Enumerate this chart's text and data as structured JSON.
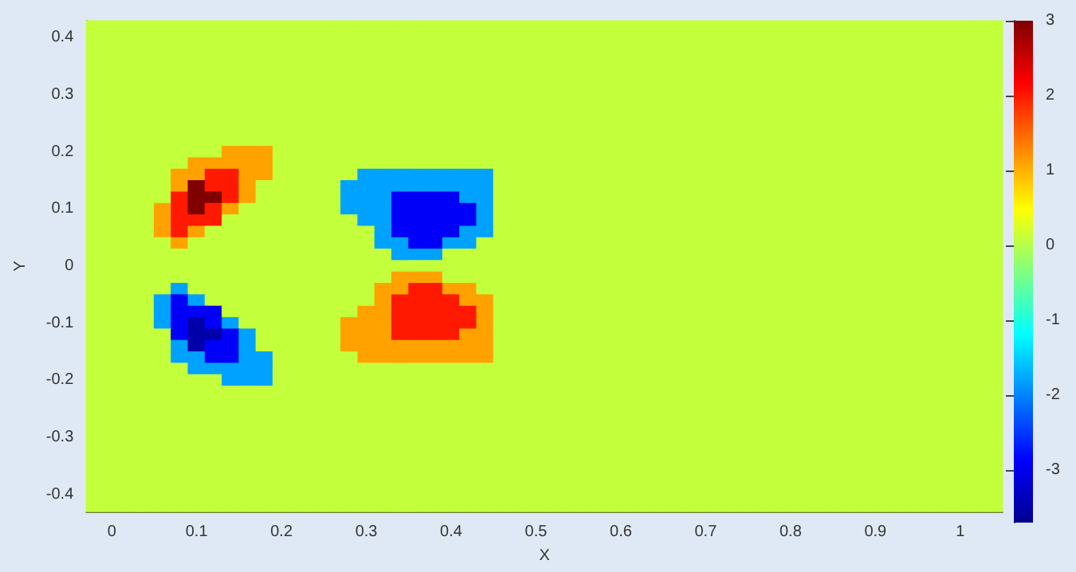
{
  "chart_data": {
    "type": "heatmap",
    "xlabel": "X",
    "ylabel": "Y",
    "clim": [
      -3.7,
      3
    ],
    "cticks": [
      -3,
      -2,
      -1,
      0,
      1,
      2,
      3
    ],
    "categories": [
      null,
      "0",
      null,
      null,
      null,
      null,
      "0.1",
      null,
      null,
      null,
      null,
      "0.2",
      null,
      null,
      null,
      null,
      "0.3",
      null,
      null,
      null,
      null,
      "0.4",
      null,
      null,
      null,
      null,
      "0.5",
      null,
      null,
      null,
      null,
      "0.6",
      null,
      null,
      null,
      null,
      "0.7",
      null,
      null,
      null,
      null,
      "0.8",
      null,
      null,
      null,
      null,
      "0.9",
      null,
      null,
      null,
      null,
      "1",
      null,
      null
    ],
    "y_categories": [
      null,
      "0.4",
      null,
      null,
      null,
      null,
      "0.3",
      null,
      null,
      null,
      null,
      "0.2",
      null,
      null,
      null,
      null,
      "0.1",
      null,
      null,
      null,
      null,
      "0",
      null,
      null,
      null,
      null,
      "-0.1",
      null,
      null,
      null,
      null,
      "-0.2",
      null,
      null,
      null,
      null,
      "-0.3",
      null,
      null,
      null,
      null,
      "-0.4",
      null
    ],
    "cells": [
      [
        0.1,
        0.1,
        0.1,
        0.1,
        0.1,
        0.1,
        0.1,
        0.1,
        0.1,
        0.1,
        0.1,
        0.1,
        0.1,
        0.1,
        0.1,
        0.1,
        0.1,
        0.1,
        0.1,
        0.1,
        0.1,
        0.1,
        0.1,
        0.1,
        0.1,
        0.1,
        0.1,
        0.1,
        0.1,
        0.1,
        0.1,
        0.1,
        0.1,
        0.1,
        0.1,
        0.1,
        0.1,
        0.1,
        0.1,
        0.1,
        0.1,
        0.1,
        0.1,
        0.1,
        0.1,
        0.1,
        0.1,
        0.1,
        0.1,
        0.1,
        0.1,
        0.1,
        0.1,
        0.1
      ],
      [
        0.1,
        0.1,
        0.1,
        0.1,
        0.1,
        0.1,
        0.1,
        0.1,
        0.1,
        0.1,
        0.1,
        0.1,
        0.1,
        0.1,
        0.1,
        0.1,
        0.1,
        0.1,
        0.1,
        0.1,
        0.1,
        0.1,
        0.1,
        0.1,
        0.1,
        0.1,
        0.1,
        0.1,
        0.1,
        0.1,
        0.1,
        0.1,
        0.1,
        0.1,
        0.1,
        0.1,
        0.1,
        0.1,
        0.1,
        0.1,
        0.1,
        0.1,
        0.1,
        0.1,
        0.1,
        0.1,
        0.1,
        0.1,
        0.1,
        0.1,
        0.1,
        0.1,
        0.1,
        0.1
      ],
      [
        0.1,
        0.1,
        0.1,
        0.1,
        0.1,
        0.1,
        0.1,
        0.1,
        0.1,
        0.1,
        0.1,
        0.1,
        0.1,
        0.1,
        0.1,
        0.1,
        0.1,
        0.1,
        0.1,
        0.1,
        0.1,
        0.1,
        0.1,
        0.1,
        0.1,
        0.1,
        0.1,
        0.1,
        0.1,
        0.1,
        0.1,
        0.1,
        0.1,
        0.1,
        0.1,
        0.1,
        0.1,
        0.1,
        0.1,
        0.1,
        0.1,
        0.1,
        0.1,
        0.1,
        0.1,
        0.1,
        0.1,
        0.1,
        0.1,
        0.1,
        0.1,
        0.1,
        0.1,
        0.1
      ],
      [
        0.1,
        0.1,
        0.1,
        0.1,
        0.1,
        0.1,
        0.1,
        0.1,
        0.1,
        0.1,
        0.1,
        0.1,
        0.1,
        0.1,
        0.1,
        0.1,
        0.1,
        0.1,
        0.1,
        0.1,
        0.1,
        0.1,
        0.1,
        0.1,
        0.1,
        0.1,
        0.1,
        0.1,
        0.1,
        0.1,
        0.1,
        0.1,
        0.1,
        0.1,
        0.1,
        0.1,
        0.1,
        0.1,
        0.1,
        0.1,
        0.1,
        0.1,
        0.1,
        0.1,
        0.1,
        0.1,
        0.1,
        0.1,
        0.1,
        0.1,
        0.1,
        0.1,
        0.1,
        0.1
      ],
      [
        0.1,
        0.1,
        0.1,
        0.1,
        0.1,
        0.1,
        0.1,
        0.1,
        0.1,
        0.1,
        0.1,
        0.1,
        0.1,
        0.1,
        0.1,
        0.1,
        0.1,
        0.1,
        0.1,
        0.1,
        0.1,
        0.1,
        0.1,
        0.1,
        0.1,
        0.1,
        0.1,
        0.1,
        0.1,
        0.1,
        0.1,
        0.1,
        0.1,
        0.1,
        0.1,
        0.1,
        0.1,
        0.1,
        0.1,
        0.1,
        0.1,
        0.1,
        0.1,
        0.1,
        0.1,
        0.1,
        0.1,
        0.1,
        0.1,
        0.1,
        0.1,
        0.1,
        0.1,
        0.1
      ],
      [
        0.1,
        0.1,
        0.1,
        0.1,
        0.1,
        0.1,
        0.1,
        0.1,
        0.1,
        0.1,
        0.1,
        0.1,
        0.1,
        0.1,
        0.1,
        0.1,
        0.1,
        0.1,
        0.1,
        0.1,
        0.1,
        0.1,
        0.1,
        0.1,
        0.1,
        0.1,
        0.1,
        0.1,
        0.1,
        0.1,
        0.1,
        0.1,
        0.1,
        0.1,
        0.1,
        0.1,
        0.1,
        0.1,
        0.1,
        0.1,
        0.1,
        0.1,
        0.1,
        0.1,
        0.1,
        0.1,
        0.1,
        0.1,
        0.1,
        0.1,
        0.1,
        0.1,
        0.1,
        0.1
      ],
      [
        0.1,
        0.1,
        0.1,
        0.1,
        0.1,
        0.1,
        0.1,
        0.1,
        0.1,
        0.1,
        0.1,
        0.1,
        0.1,
        0.1,
        0.1,
        0.1,
        0.1,
        0.1,
        0.1,
        0.1,
        0.1,
        0.1,
        0.1,
        0.1,
        0.1,
        0.1,
        0.1,
        0.1,
        0.1,
        0.1,
        0.1,
        0.1,
        0.1,
        0.1,
        0.1,
        0.1,
        0.1,
        0.1,
        0.1,
        0.1,
        0.1,
        0.1,
        0.1,
        0.1,
        0.1,
        0.1,
        0.1,
        0.1,
        0.1,
        0.1,
        0.1,
        0.1,
        0.1,
        0.1
      ],
      [
        0.1,
        0.1,
        0.1,
        0.1,
        0.1,
        0.1,
        0.1,
        0.1,
        0.1,
        0.1,
        0.1,
        0.1,
        0.1,
        0.1,
        0.1,
        0.1,
        0.1,
        0.1,
        0.1,
        0.1,
        0.1,
        0.1,
        0.1,
        0.1,
        0.1,
        0.1,
        0.1,
        0.1,
        0.1,
        0.1,
        0.1,
        0.1,
        0.1,
        0.1,
        0.1,
        0.1,
        0.1,
        0.1,
        0.1,
        0.1,
        0.1,
        0.1,
        0.1,
        0.1,
        0.1,
        0.1,
        0.1,
        0.1,
        0.1,
        0.1,
        0.1,
        0.1,
        0.1,
        0.1
      ],
      [
        0.1,
        0.1,
        0.1,
        0.1,
        0.1,
        0.1,
        0.1,
        0.1,
        0.1,
        0.1,
        0.1,
        0.1,
        0.1,
        0.1,
        0.1,
        0.1,
        0.1,
        0.1,
        0.1,
        0.1,
        0.1,
        0.1,
        0.1,
        0.1,
        0.1,
        0.1,
        0.1,
        0.1,
        0.1,
        0.1,
        0.1,
        0.1,
        0.1,
        0.1,
        0.1,
        0.1,
        0.1,
        0.1,
        0.1,
        0.1,
        0.1,
        0.1,
        0.1,
        0.1,
        0.1,
        0.1,
        0.1,
        0.1,
        0.1,
        0.1,
        0.1,
        0.1,
        0.1,
        0.1
      ],
      [
        0.1,
        0.1,
        0.1,
        0.1,
        0.1,
        0.1,
        0.1,
        0.1,
        0.1,
        0.1,
        0.1,
        0.1,
        0.1,
        0.1,
        0.1,
        0.1,
        0.1,
        0.1,
        0.1,
        0.1,
        0.1,
        0.1,
        0.1,
        0.1,
        0.1,
        0.1,
        0.1,
        0.1,
        0.1,
        0.1,
        0.1,
        0.1,
        0.1,
        0.1,
        0.1,
        0.1,
        0.1,
        0.1,
        0.1,
        0.1,
        0.1,
        0.1,
        0.1,
        0.1,
        0.1,
        0.1,
        0.1,
        0.1,
        0.1,
        0.1,
        0.1,
        0.1,
        0.1,
        0.1
      ],
      [
        0.1,
        0.1,
        0.1,
        0.1,
        0.1,
        0.1,
        0.1,
        0.1,
        0.1,
        0.1,
        0.1,
        0.1,
        0.1,
        0.1,
        0.1,
        0.1,
        0.1,
        0.1,
        0.1,
        0.1,
        0.1,
        0.1,
        0.1,
        0.1,
        0.1,
        0.1,
        0.1,
        0.1,
        0.1,
        0.1,
        0.1,
        0.1,
        0.1,
        0.1,
        0.1,
        0.1,
        0.1,
        0.1,
        0.1,
        0.1,
        0.1,
        0.1,
        0.1,
        0.1,
        0.1,
        0.1,
        0.1,
        0.1,
        0.1,
        0.1,
        0.1,
        0.1,
        0.1,
        0.1
      ],
      [
        0.1,
        0.1,
        0.1,
        0.1,
        0.1,
        0.1,
        0.1,
        0.1,
        1.1,
        1.1,
        1.1,
        0.1,
        0.1,
        0.1,
        0.1,
        0.1,
        0.1,
        0.1,
        0.1,
        0.1,
        0.1,
        0.1,
        0.1,
        0.1,
        0.1,
        0.1,
        0.1,
        0.1,
        0.1,
        0.1,
        0.1,
        0.1,
        0.1,
        0.1,
        0.1,
        0.1,
        0.1,
        0.1,
        0.1,
        0.1,
        0.1,
        0.1,
        0.1,
        0.1,
        0.1,
        0.1,
        0.1,
        0.1,
        0.1,
        0.1,
        0.1,
        0.1,
        0.1,
        0.1
      ],
      [
        0.1,
        0.1,
        0.1,
        0.1,
        0.1,
        0.1,
        1.1,
        1.1,
        1.1,
        1.1,
        1.1,
        0.1,
        0.1,
        0.1,
        0.1,
        0.1,
        0.1,
        0.1,
        0.1,
        0.1,
        0.1,
        0.1,
        0.1,
        0.1,
        0.1,
        0.1,
        0.1,
        0.1,
        0.1,
        0.1,
        0.1,
        0.1,
        0.1,
        0.1,
        0.1,
        0.1,
        0.1,
        0.1,
        0.1,
        0.1,
        0.1,
        0.1,
        0.1,
        0.1,
        0.1,
        0.1,
        0.1,
        0.1,
        0.1,
        0.1,
        0.1,
        0.1,
        0.1,
        0.1
      ],
      [
        0.1,
        0.1,
        0.1,
        0.1,
        0.1,
        1.1,
        1.1,
        2,
        2,
        1.1,
        1.1,
        0.1,
        0.1,
        0.1,
        0.1,
        0.1,
        -1.8,
        -1.8,
        -1.8,
        -1.8,
        -1.8,
        -1.8,
        -1.8,
        -1.8,
        0.1,
        0.1,
        0.1,
        0.1,
        0.1,
        0.1,
        0.1,
        0.1,
        0.1,
        0.1,
        0.1,
        0.1,
        0.1,
        0.1,
        0.1,
        0.1,
        0.1,
        0.1,
        0.1,
        0.1,
        0.1,
        0.1,
        0.1,
        0.1,
        0.1,
        0.1,
        0.1,
        0.1,
        0.1,
        0.1
      ],
      [
        0.1,
        0.1,
        0.1,
        0.1,
        0.1,
        1.1,
        3,
        2,
        2,
        1.1,
        0.1,
        0.1,
        0.1,
        0.1,
        0.1,
        -1.8,
        -1.8,
        -1.8,
        -1.8,
        -1.8,
        -1.8,
        -1.8,
        -1.8,
        -1.8,
        0.1,
        0.1,
        0.1,
        0.1,
        0.1,
        0.1,
        0.1,
        0.1,
        0.1,
        0.1,
        0.1,
        0.1,
        0.1,
        0.1,
        0.1,
        0.1,
        0.1,
        0.1,
        0.1,
        0.1,
        0.1,
        0.1,
        0.1,
        0.1,
        0.1,
        0.1,
        0.1,
        0.1,
        0.1,
        0.1
      ],
      [
        0.1,
        0.1,
        0.1,
        0.1,
        0.1,
        2,
        3,
        3,
        2,
        1.1,
        0.1,
        0.1,
        0.1,
        0.1,
        0.1,
        -1.8,
        -1.8,
        -1.8,
        -2.9,
        -2.9,
        -2.9,
        -2.9,
        -1.8,
        -1.8,
        0.1,
        0.1,
        0.1,
        0.1,
        0.1,
        0.1,
        0.1,
        0.1,
        0.1,
        0.1,
        0.1,
        0.1,
        0.1,
        0.1,
        0.1,
        0.1,
        0.1,
        0.1,
        0.1,
        0.1,
        0.1,
        0.1,
        0.1,
        0.1,
        0.1,
        0.1,
        0.1,
        0.1,
        0.1,
        0.1
      ],
      [
        0.1,
        0.1,
        0.1,
        0.1,
        1.1,
        2,
        3,
        2,
        1.1,
        0.1,
        0.1,
        0.1,
        0.1,
        0.1,
        0.1,
        -1.8,
        -1.8,
        -1.8,
        -2.9,
        -2.9,
        -2.9,
        -2.9,
        -2.9,
        -1.8,
        0.1,
        0.1,
        0.1,
        0.1,
        0.1,
        0.1,
        0.1,
        0.1,
        0.1,
        0.1,
        0.1,
        0.1,
        0.1,
        0.1,
        0.1,
        0.1,
        0.1,
        0.1,
        0.1,
        0.1,
        0.1,
        0.1,
        0.1,
        0.1,
        0.1,
        0.1,
        0.1,
        0.1,
        0.1,
        0.1
      ],
      [
        0.1,
        0.1,
        0.1,
        0.1,
        1.1,
        2,
        2,
        2,
        0.1,
        0.1,
        0.1,
        0.1,
        0.1,
        0.1,
        0.1,
        0.1,
        -1.8,
        -1.8,
        -2.9,
        -2.9,
        -2.9,
        -2.9,
        -2.9,
        -1.8,
        0.1,
        0.1,
        0.1,
        0.1,
        0.1,
        0.1,
        0.1,
        0.1,
        0.1,
        0.1,
        0.1,
        0.1,
        0.1,
        0.1,
        0.1,
        0.1,
        0.1,
        0.1,
        0.1,
        0.1,
        0.1,
        0.1,
        0.1,
        0.1,
        0.1,
        0.1,
        0.1,
        0.1,
        0.1,
        0.1
      ],
      [
        0.1,
        0.1,
        0.1,
        0.1,
        1.1,
        2,
        1.1,
        0.1,
        0.1,
        0.1,
        0.1,
        0.1,
        0.1,
        0.1,
        0.1,
        0.1,
        0.1,
        -1.8,
        -2.9,
        -2.9,
        -2.9,
        -2.9,
        -1.8,
        -1.8,
        0.1,
        0.1,
        0.1,
        0.1,
        0.1,
        0.1,
        0.1,
        0.1,
        0.1,
        0.1,
        0.1,
        0.1,
        0.1,
        0.1,
        0.1,
        0.1,
        0.1,
        0.1,
        0.1,
        0.1,
        0.1,
        0.1,
        0.1,
        0.1,
        0.1,
        0.1,
        0.1,
        0.1,
        0.1,
        0.1
      ],
      [
        0.1,
        0.1,
        0.1,
        0.1,
        0.1,
        1.1,
        0.1,
        0.1,
        0.1,
        0.1,
        0.1,
        0.1,
        0.1,
        0.1,
        0.1,
        0.1,
        0.1,
        -1.8,
        -1.8,
        -2.9,
        -2.9,
        -1.8,
        -1.8,
        0.1,
        0.1,
        0.1,
        0.1,
        0.1,
        0.1,
        0.1,
        0.1,
        0.1,
        0.1,
        0.1,
        0.1,
        0.1,
        0.1,
        0.1,
        0.1,
        0.1,
        0.1,
        0.1,
        0.1,
        0.1,
        0.1,
        0.1,
        0.1,
        0.1,
        0.1,
        0.1,
        0.1,
        0.1,
        0.1,
        0.1
      ],
      [
        0.1,
        0.1,
        0.1,
        0.1,
        0.1,
        0.1,
        0.1,
        0.1,
        0.1,
        0.1,
        0.1,
        0.1,
        0.1,
        0.1,
        0.1,
        0.1,
        0.1,
        0.1,
        -1.8,
        -1.8,
        -1.8,
        0.1,
        0.1,
        0.1,
        0.1,
        0.1,
        0.1,
        0.1,
        0.1,
        0.1,
        0.1,
        0.1,
        0.1,
        0.1,
        0.1,
        0.1,
        0.1,
        0.1,
        0.1,
        0.1,
        0.1,
        0.1,
        0.1,
        0.1,
        0.1,
        0.1,
        0.1,
        0.1,
        0.1,
        0.1,
        0.1,
        0.1,
        0.1,
        0.1
      ],
      [
        0.1,
        0.1,
        0.1,
        0.1,
        0.1,
        0.1,
        0.1,
        0.1,
        0.1,
        0.1,
        0.1,
        0.1,
        0.1,
        0.1,
        0.1,
        0.1,
        0.1,
        0.1,
        0.1,
        0.1,
        0.1,
        0.1,
        0.1,
        0.1,
        0.1,
        0.1,
        0.1,
        0.1,
        0.1,
        0.1,
        0.1,
        0.1,
        0.1,
        0.1,
        0.1,
        0.1,
        0.1,
        0.1,
        0.1,
        0.1,
        0.1,
        0.1,
        0.1,
        0.1,
        0.1,
        0.1,
        0.1,
        0.1,
        0.1,
        0.1,
        0.1,
        0.1,
        0.1,
        0.1
      ],
      [
        0.1,
        0.1,
        0.1,
        0.1,
        0.1,
        0.1,
        0.1,
        0.1,
        0.1,
        0.1,
        0.1,
        0.1,
        0.1,
        0.1,
        0.1,
        0.1,
        0.1,
        0.1,
        1.1,
        1.1,
        1.1,
        0.1,
        0.1,
        0.1,
        0.1,
        0.1,
        0.1,
        0.1,
        0.1,
        0.1,
        0.1,
        0.1,
        0.1,
        0.1,
        0.1,
        0.1,
        0.1,
        0.1,
        0.1,
        0.1,
        0.1,
        0.1,
        0.1,
        0.1,
        0.1,
        0.1,
        0.1,
        0.1,
        0.1,
        0.1,
        0.1,
        0.1,
        0.1,
        0.1
      ],
      [
        0.1,
        0.1,
        0.1,
        0.1,
        0.1,
        -1.8,
        0.1,
        0.1,
        0.1,
        0.1,
        0.1,
        0.1,
        0.1,
        0.1,
        0.1,
        0.1,
        0.1,
        1.1,
        1.1,
        2,
        2,
        1.1,
        1.1,
        0.1,
        0.1,
        0.1,
        0.1,
        0.1,
        0.1,
        0.1,
        0.1,
        0.1,
        0.1,
        0.1,
        0.1,
        0.1,
        0.1,
        0.1,
        0.1,
        0.1,
        0.1,
        0.1,
        0.1,
        0.1,
        0.1,
        0.1,
        0.1,
        0.1,
        0.1,
        0.1,
        0.1,
        0.1,
        0.1,
        0.1
      ],
      [
        0.1,
        0.1,
        0.1,
        0.1,
        -1.8,
        -2.9,
        -1.8,
        0.1,
        0.1,
        0.1,
        0.1,
        0.1,
        0.1,
        0.1,
        0.1,
        0.1,
        0.1,
        1.1,
        2,
        2,
        2,
        2,
        1.1,
        1.1,
        0.1,
        0.1,
        0.1,
        0.1,
        0.1,
        0.1,
        0.1,
        0.1,
        0.1,
        0.1,
        0.1,
        0.1,
        0.1,
        0.1,
        0.1,
        0.1,
        0.1,
        0.1,
        0.1,
        0.1,
        0.1,
        0.1,
        0.1,
        0.1,
        0.1,
        0.1,
        0.1,
        0.1,
        0.1,
        0.1
      ],
      [
        0.1,
        0.1,
        0.1,
        0.1,
        -1.8,
        -2.9,
        -2.9,
        -2.9,
        0.1,
        0.1,
        0.1,
        0.1,
        0.1,
        0.1,
        0.1,
        0.1,
        1.1,
        1.1,
        2,
        2,
        2,
        2,
        2,
        1.1,
        0.1,
        0.1,
        0.1,
        0.1,
        0.1,
        0.1,
        0.1,
        0.1,
        0.1,
        0.1,
        0.1,
        0.1,
        0.1,
        0.1,
        0.1,
        0.1,
        0.1,
        0.1,
        0.1,
        0.1,
        0.1,
        0.1,
        0.1,
        0.1,
        0.1,
        0.1,
        0.1,
        0.1,
        0.1,
        0.1
      ],
      [
        0.1,
        0.1,
        0.1,
        0.1,
        -1.8,
        -2.9,
        -3.5,
        -2.9,
        -1.8,
        0.1,
        0.1,
        0.1,
        0.1,
        0.1,
        0.1,
        1.1,
        1.1,
        1.1,
        2,
        2,
        2,
        2,
        2,
        1.1,
        0.1,
        0.1,
        0.1,
        0.1,
        0.1,
        0.1,
        0.1,
        0.1,
        0.1,
        0.1,
        0.1,
        0.1,
        0.1,
        0.1,
        0.1,
        0.1,
        0.1,
        0.1,
        0.1,
        0.1,
        0.1,
        0.1,
        0.1,
        0.1,
        0.1,
        0.1,
        0.1,
        0.1,
        0.1,
        0.1
      ],
      [
        0.1,
        0.1,
        0.1,
        0.1,
        0.1,
        -2.9,
        -3.5,
        -3.5,
        -2.9,
        -1.8,
        0.1,
        0.1,
        0.1,
        0.1,
        0.1,
        1.1,
        1.1,
        1.1,
        2,
        2,
        2,
        2,
        1.1,
        1.1,
        0.1,
        0.1,
        0.1,
        0.1,
        0.1,
        0.1,
        0.1,
        0.1,
        0.1,
        0.1,
        0.1,
        0.1,
        0.1,
        0.1,
        0.1,
        0.1,
        0.1,
        0.1,
        0.1,
        0.1,
        0.1,
        0.1,
        0.1,
        0.1,
        0.1,
        0.1,
        0.1,
        0.1,
        0.1,
        0.1
      ],
      [
        0.1,
        0.1,
        0.1,
        0.1,
        0.1,
        -1.8,
        -3.5,
        -2.9,
        -2.9,
        -1.8,
        0.1,
        0.1,
        0.1,
        0.1,
        0.1,
        1.1,
        1.1,
        1.1,
        1.1,
        1.1,
        1.1,
        1.1,
        1.1,
        1.1,
        0.1,
        0.1,
        0.1,
        0.1,
        0.1,
        0.1,
        0.1,
        0.1,
        0.1,
        0.1,
        0.1,
        0.1,
        0.1,
        0.1,
        0.1,
        0.1,
        0.1,
        0.1,
        0.1,
        0.1,
        0.1,
        0.1,
        0.1,
        0.1,
        0.1,
        0.1,
        0.1,
        0.1,
        0.1,
        0.1
      ],
      [
        0.1,
        0.1,
        0.1,
        0.1,
        0.1,
        -1.8,
        -1.8,
        -2.9,
        -2.9,
        -1.8,
        -1.8,
        0.1,
        0.1,
        0.1,
        0.1,
        0.1,
        1.1,
        1.1,
        1.1,
        1.1,
        1.1,
        1.1,
        1.1,
        1.1,
        0.1,
        0.1,
        0.1,
        0.1,
        0.1,
        0.1,
        0.1,
        0.1,
        0.1,
        0.1,
        0.1,
        0.1,
        0.1,
        0.1,
        0.1,
        0.1,
        0.1,
        0.1,
        0.1,
        0.1,
        0.1,
        0.1,
        0.1,
        0.1,
        0.1,
        0.1,
        0.1,
        0.1,
        0.1,
        0.1
      ],
      [
        0.1,
        0.1,
        0.1,
        0.1,
        0.1,
        0.1,
        -1.8,
        -1.8,
        -1.8,
        -1.8,
        -1.8,
        0.1,
        0.1,
        0.1,
        0.1,
        0.1,
        0.1,
        0.1,
        0.1,
        0.1,
        0.1,
        0.1,
        0.1,
        0.1,
        0.1,
        0.1,
        0.1,
        0.1,
        0.1,
        0.1,
        0.1,
        0.1,
        0.1,
        0.1,
        0.1,
        0.1,
        0.1,
        0.1,
        0.1,
        0.1,
        0.1,
        0.1,
        0.1,
        0.1,
        0.1,
        0.1,
        0.1,
        0.1,
        0.1,
        0.1,
        0.1,
        0.1,
        0.1,
        0.1
      ],
      [
        0.1,
        0.1,
        0.1,
        0.1,
        0.1,
        0.1,
        0.1,
        0.1,
        -1.8,
        -1.8,
        -1.8,
        0.1,
        0.1,
        0.1,
        0.1,
        0.1,
        0.1,
        0.1,
        0.1,
        0.1,
        0.1,
        0.1,
        0.1,
        0.1,
        0.1,
        0.1,
        0.1,
        0.1,
        0.1,
        0.1,
        0.1,
        0.1,
        0.1,
        0.1,
        0.1,
        0.1,
        0.1,
        0.1,
        0.1,
        0.1,
        0.1,
        0.1,
        0.1,
        0.1,
        0.1,
        0.1,
        0.1,
        0.1,
        0.1,
        0.1,
        0.1,
        0.1,
        0.1,
        0.1
      ],
      [
        0.1,
        0.1,
        0.1,
        0.1,
        0.1,
        0.1,
        0.1,
        0.1,
        0.1,
        0.1,
        0.1,
        0.1,
        0.1,
        0.1,
        0.1,
        0.1,
        0.1,
        0.1,
        0.1,
        0.1,
        0.1,
        0.1,
        0.1,
        0.1,
        0.1,
        0.1,
        0.1,
        0.1,
        0.1,
        0.1,
        0.1,
        0.1,
        0.1,
        0.1,
        0.1,
        0.1,
        0.1,
        0.1,
        0.1,
        0.1,
        0.1,
        0.1,
        0.1,
        0.1,
        0.1,
        0.1,
        0.1,
        0.1,
        0.1,
        0.1,
        0.1,
        0.1,
        0.1,
        0.1
      ],
      [
        0.1,
        0.1,
        0.1,
        0.1,
        0.1,
        0.1,
        0.1,
        0.1,
        0.1,
        0.1,
        0.1,
        0.1,
        0.1,
        0.1,
        0.1,
        0.1,
        0.1,
        0.1,
        0.1,
        0.1,
        0.1,
        0.1,
        0.1,
        0.1,
        0.1,
        0.1,
        0.1,
        0.1,
        0.1,
        0.1,
        0.1,
        0.1,
        0.1,
        0.1,
        0.1,
        0.1,
        0.1,
        0.1,
        0.1,
        0.1,
        0.1,
        0.1,
        0.1,
        0.1,
        0.1,
        0.1,
        0.1,
        0.1,
        0.1,
        0.1,
        0.1,
        0.1,
        0.1,
        0.1
      ],
      [
        0.1,
        0.1,
        0.1,
        0.1,
        0.1,
        0.1,
        0.1,
        0.1,
        0.1,
        0.1,
        0.1,
        0.1,
        0.1,
        0.1,
        0.1,
        0.1,
        0.1,
        0.1,
        0.1,
        0.1,
        0.1,
        0.1,
        0.1,
        0.1,
        0.1,
        0.1,
        0.1,
        0.1,
        0.1,
        0.1,
        0.1,
        0.1,
        0.1,
        0.1,
        0.1,
        0.1,
        0.1,
        0.1,
        0.1,
        0.1,
        0.1,
        0.1,
        0.1,
        0.1,
        0.1,
        0.1,
        0.1,
        0.1,
        0.1,
        0.1,
        0.1,
        0.1,
        0.1,
        0.1
      ],
      [
        0.1,
        0.1,
        0.1,
        0.1,
        0.1,
        0.1,
        0.1,
        0.1,
        0.1,
        0.1,
        0.1,
        0.1,
        0.1,
        0.1,
        0.1,
        0.1,
        0.1,
        0.1,
        0.1,
        0.1,
        0.1,
        0.1,
        0.1,
        0.1,
        0.1,
        0.1,
        0.1,
        0.1,
        0.1,
        0.1,
        0.1,
        0.1,
        0.1,
        0.1,
        0.1,
        0.1,
        0.1,
        0.1,
        0.1,
        0.1,
        0.1,
        0.1,
        0.1,
        0.1,
        0.1,
        0.1,
        0.1,
        0.1,
        0.1,
        0.1,
        0.1,
        0.1,
        0.1,
        0.1
      ],
      [
        0.1,
        0.1,
        0.1,
        0.1,
        0.1,
        0.1,
        0.1,
        0.1,
        0.1,
        0.1,
        0.1,
        0.1,
        0.1,
        0.1,
        0.1,
        0.1,
        0.1,
        0.1,
        0.1,
        0.1,
        0.1,
        0.1,
        0.1,
        0.1,
        0.1,
        0.1,
        0.1,
        0.1,
        0.1,
        0.1,
        0.1,
        0.1,
        0.1,
        0.1,
        0.1,
        0.1,
        0.1,
        0.1,
        0.1,
        0.1,
        0.1,
        0.1,
        0.1,
        0.1,
        0.1,
        0.1,
        0.1,
        0.1,
        0.1,
        0.1,
        0.1,
        0.1,
        0.1,
        0.1
      ],
      [
        0.1,
        0.1,
        0.1,
        0.1,
        0.1,
        0.1,
        0.1,
        0.1,
        0.1,
        0.1,
        0.1,
        0.1,
        0.1,
        0.1,
        0.1,
        0.1,
        0.1,
        0.1,
        0.1,
        0.1,
        0.1,
        0.1,
        0.1,
        0.1,
        0.1,
        0.1,
        0.1,
        0.1,
        0.1,
        0.1,
        0.1,
        0.1,
        0.1,
        0.1,
        0.1,
        0.1,
        0.1,
        0.1,
        0.1,
        0.1,
        0.1,
        0.1,
        0.1,
        0.1,
        0.1,
        0.1,
        0.1,
        0.1,
        0.1,
        0.1,
        0.1,
        0.1,
        0.1,
        0.1
      ],
      [
        0.1,
        0.1,
        0.1,
        0.1,
        0.1,
        0.1,
        0.1,
        0.1,
        0.1,
        0.1,
        0.1,
        0.1,
        0.1,
        0.1,
        0.1,
        0.1,
        0.1,
        0.1,
        0.1,
        0.1,
        0.1,
        0.1,
        0.1,
        0.1,
        0.1,
        0.1,
        0.1,
        0.1,
        0.1,
        0.1,
        0.1,
        0.1,
        0.1,
        0.1,
        0.1,
        0.1,
        0.1,
        0.1,
        0.1,
        0.1,
        0.1,
        0.1,
        0.1,
        0.1,
        0.1,
        0.1,
        0.1,
        0.1,
        0.1,
        0.1,
        0.1,
        0.1,
        0.1,
        0.1
      ],
      [
        0.1,
        0.1,
        0.1,
        0.1,
        0.1,
        0.1,
        0.1,
        0.1,
        0.1,
        0.1,
        0.1,
        0.1,
        0.1,
        0.1,
        0.1,
        0.1,
        0.1,
        0.1,
        0.1,
        0.1,
        0.1,
        0.1,
        0.1,
        0.1,
        0.1,
        0.1,
        0.1,
        0.1,
        0.1,
        0.1,
        0.1,
        0.1,
        0.1,
        0.1,
        0.1,
        0.1,
        0.1,
        0.1,
        0.1,
        0.1,
        0.1,
        0.1,
        0.1,
        0.1,
        0.1,
        0.1,
        0.1,
        0.1,
        0.1,
        0.1,
        0.1,
        0.1,
        0.1,
        0.1
      ],
      [
        0.1,
        0.1,
        0.1,
        0.1,
        0.1,
        0.1,
        0.1,
        0.1,
        0.1,
        0.1,
        0.1,
        0.1,
        0.1,
        0.1,
        0.1,
        0.1,
        0.1,
        0.1,
        0.1,
        0.1,
        0.1,
        0.1,
        0.1,
        0.1,
        0.1,
        0.1,
        0.1,
        0.1,
        0.1,
        0.1,
        0.1,
        0.1,
        0.1,
        0.1,
        0.1,
        0.1,
        0.1,
        0.1,
        0.1,
        0.1,
        0.1,
        0.1,
        0.1,
        0.1,
        0.1,
        0.1,
        0.1,
        0.1,
        0.1,
        0.1,
        0.1,
        0.1,
        0.1,
        0.1
      ],
      [
        0.1,
        0.1,
        0.1,
        0.1,
        0.1,
        0.1,
        0.1,
        0.1,
        0.1,
        0.1,
        0.1,
        0.1,
        0.1,
        0.1,
        0.1,
        0.1,
        0.1,
        0.1,
        0.1,
        0.1,
        0.1,
        0.1,
        0.1,
        0.1,
        0.1,
        0.1,
        0.1,
        0.1,
        0.1,
        0.1,
        0.1,
        0.1,
        0.1,
        0.1,
        0.1,
        0.1,
        0.1,
        0.1,
        0.1,
        0.1,
        0.1,
        0.1,
        0.1,
        0.1,
        0.1,
        0.1,
        0.1,
        0.1,
        0.1,
        0.1,
        0.1,
        0.1,
        0.1,
        0.1
      ],
      [
        0.1,
        0.1,
        0.1,
        0.1,
        0.1,
        0.1,
        0.1,
        0.1,
        0.1,
        0.1,
        0.1,
        0.1,
        0.1,
        0.1,
        0.1,
        0.1,
        0.1,
        0.1,
        0.1,
        0.1,
        0.1,
        0.1,
        0.1,
        0.1,
        0.1,
        0.1,
        0.1,
        0.1,
        0.1,
        0.1,
        0.1,
        0.1,
        0.1,
        0.1,
        0.1,
        0.1,
        0.1,
        0.1,
        0.1,
        0.1,
        0.1,
        0.1,
        0.1,
        0.1,
        0.1,
        0.1,
        0.1,
        0.1,
        0.1,
        0.1,
        0.1,
        0.1,
        0.1,
        0.1
      ]
    ]
  }
}
